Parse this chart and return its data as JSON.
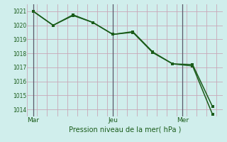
{
  "line1_x": [
    0,
    1,
    2,
    3,
    4,
    5,
    6,
    7,
    8,
    9
  ],
  "line1_y": [
    1021.0,
    1020.0,
    1020.7,
    1020.2,
    1019.35,
    1019.55,
    1018.1,
    1017.25,
    1017.2,
    1014.2
  ],
  "line2_x": [
    0,
    1,
    2,
    3,
    4,
    5,
    6,
    7,
    8,
    9
  ],
  "line2_y": [
    1021.0,
    1020.0,
    1020.75,
    1020.2,
    1019.35,
    1019.5,
    1018.05,
    1017.25,
    1017.1,
    1013.65
  ],
  "xtick_positions": [
    0,
    4,
    7.5
  ],
  "xtick_labels": [
    "Mar",
    "Jeu",
    "Mer"
  ],
  "vline_positions": [
    0,
    4,
    7.5
  ],
  "ylim": [
    1013.5,
    1021.5
  ],
  "xlim": [
    -0.3,
    9.5
  ],
  "ytick_positions": [
    1014,
    1015,
    1016,
    1017,
    1018,
    1019,
    1020,
    1021
  ],
  "ytick_labels": [
    "1014",
    "1015",
    "1016",
    "1017",
    "1018",
    "1019",
    "1020",
    "1021"
  ],
  "xlabel": "Pression niveau de la mer( hPa )",
  "line_color": "#1a5c1a",
  "marker": "s",
  "marker_size": 2.5,
  "bg_color": "#d0eeec",
  "grid_color_h": "#c8a8b8",
  "grid_color_v": "#c8a8b8",
  "vline_color": "#5a5a6a",
  "xlabel_color": "#1a5c1a",
  "tick_color": "#1a5c1a"
}
